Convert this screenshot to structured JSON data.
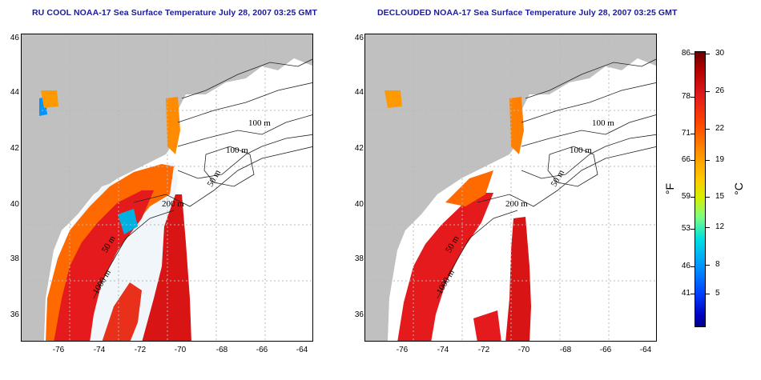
{
  "titles": {
    "left": "RU COOL NOAA-17 Sea Surface Temperature July 28, 2007 03:25 GMT",
    "right": "DECLOUDED NOAA-17 Sea Surface Temperature July 28, 2007 03:25 GMT"
  },
  "axes": {
    "lat_ticks": [
      "46",
      "44",
      "42",
      "40",
      "38",
      "36"
    ],
    "lon_ticks": [
      "-76",
      "-74",
      "-72",
      "-70",
      "-68",
      "-66",
      "-64"
    ]
  },
  "contour_labels": [
    "100 m",
    "100 m",
    "50 m",
    "200 m",
    "50 m",
    "1000 m"
  ],
  "colorbar": {
    "fahrenheit": [
      "86",
      "78",
      "71",
      "66",
      "59",
      "53",
      "46",
      "41"
    ],
    "celsius": [
      "30",
      "26",
      "22",
      "19",
      "15",
      "12",
      "8",
      "5"
    ],
    "unit_f": "°F",
    "unit_c": "°C"
  },
  "colors": {
    "land": "#c0c0c0",
    "ocean": "#ffffff",
    "title": "#1a1a9c",
    "hot": "#e41a1c",
    "warm": "#ff8c00"
  }
}
